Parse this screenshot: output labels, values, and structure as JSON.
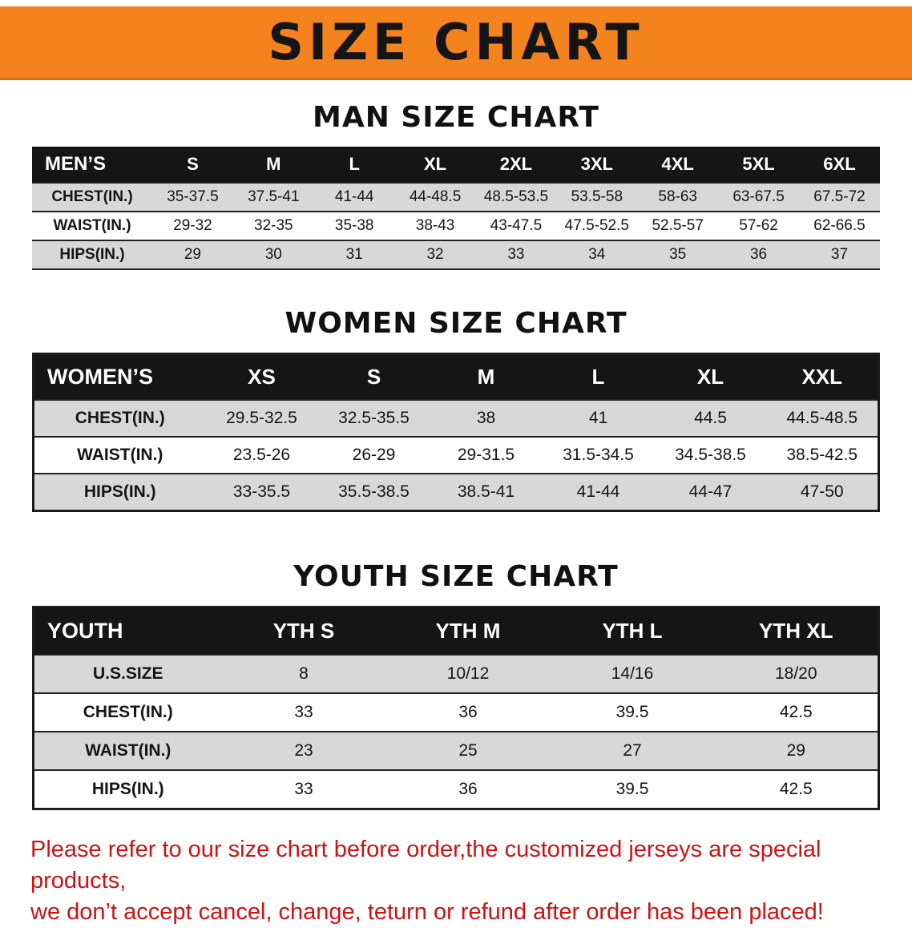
{
  "banner": {
    "title": "SIZE CHART",
    "bg_color": "#F5831D"
  },
  "men": {
    "heading": "MAN SIZE CHART",
    "table": {
      "corner": "MEN’S",
      "columns": [
        "S",
        "M",
        "L",
        "XL",
        "2XL",
        "3XL",
        "4XL",
        "5XL",
        "6XL"
      ],
      "rows": [
        {
          "label": "CHEST(IN.)",
          "values": [
            "35-37.5",
            "37.5-41",
            "41-44",
            "44-48.5",
            "48.5-53.5",
            "53.5-58",
            "58-63",
            "63-67.5",
            "67.5-72"
          ]
        },
        {
          "label": "WAIST(IN.)",
          "values": [
            "29-32",
            "32-35",
            "35-38",
            "38-43",
            "43-47.5",
            "47.5-52.5",
            "52.5-57",
            "57-62",
            "62-66.5"
          ]
        },
        {
          "label": "HIPS(IN.)",
          "values": [
            "29",
            "30",
            "31",
            "32",
            "33",
            "34",
            "35",
            "36",
            "37"
          ]
        }
      ]
    }
  },
  "women": {
    "heading": "WOMEN SIZE CHART",
    "table": {
      "corner": "WOMEN’S",
      "columns": [
        "XS",
        "S",
        "M",
        "L",
        "XL",
        "XXL"
      ],
      "rows": [
        {
          "label": "CHEST(IN.)",
          "values": [
            "29.5-32.5",
            "32.5-35.5",
            "38",
            "41",
            "44.5",
            "44.5-48.5"
          ]
        },
        {
          "label": "WAIST(IN.)",
          "values": [
            "23.5-26",
            "26-29",
            "29-31.5",
            "31.5-34.5",
            "34.5-38.5",
            "38.5-42.5"
          ]
        },
        {
          "label": "HIPS(IN.)",
          "values": [
            "33-35.5",
            "35.5-38.5",
            "38.5-41",
            "41-44",
            "44-47",
            "47-50"
          ]
        }
      ]
    }
  },
  "youth": {
    "heading": "YOUTH SIZE CHART",
    "table": {
      "corner": "YOUTH",
      "columns": [
        "YTH S",
        "YTH M",
        "YTH L",
        "YTH XL"
      ],
      "rows": [
        {
          "label": "U.S.SIZE",
          "values": [
            "8",
            "10/12",
            "14/16",
            "18/20"
          ]
        },
        {
          "label": "CHEST(IN.)",
          "values": [
            "33",
            "36",
            "39.5",
            "42.5"
          ]
        },
        {
          "label": "WAIST(IN.)",
          "values": [
            "23",
            "25",
            "27",
            "29"
          ]
        },
        {
          "label": "HIPS(IN.)",
          "values": [
            "33",
            "36",
            "39.5",
            "42.5"
          ]
        }
      ]
    }
  },
  "disclaimer": {
    "line1": "Please refer to our size chart before order,the customized jerseys are special products,",
    "line2": "we don’t accept cancel, change, teturn or refund after order has been placed!",
    "color": "#CE1212"
  }
}
